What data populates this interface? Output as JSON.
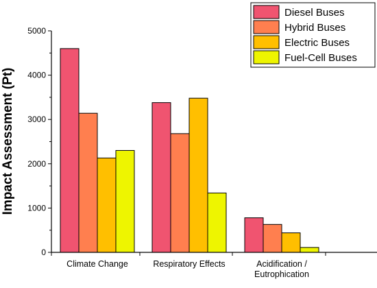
{
  "chart_data": {
    "type": "bar",
    "title": "",
    "xlabel": "",
    "ylabel": "Impact Assessment (Pt)",
    "ylim": [
      0,
      5000
    ],
    "yticks": [
      0,
      1000,
      2000,
      3000,
      4000,
      5000
    ],
    "grid": false,
    "legend_position": "top-right",
    "categories": [
      "Climate Change",
      "Respiratory Effects",
      "Acidification / Eutrophication"
    ],
    "category_lines": [
      [
        "Climate Change"
      ],
      [
        "Respiratory Effects"
      ],
      [
        "Acidification /",
        "Eutrophication"
      ]
    ],
    "series": [
      {
        "name": "Diesel Buses",
        "color": "#f05470",
        "values": [
          4600,
          3380,
          780
        ]
      },
      {
        "name": "Hybrid Buses",
        "color": "#ff7f4f",
        "values": [
          3140,
          2680,
          630
        ]
      },
      {
        "name": "Electric Buses",
        "color": "#ffbf00",
        "values": [
          2130,
          3480,
          440
        ]
      },
      {
        "name": "Fuel-Cell Buses",
        "color": "#eef500",
        "values": [
          2300,
          1340,
          110
        ]
      }
    ]
  }
}
